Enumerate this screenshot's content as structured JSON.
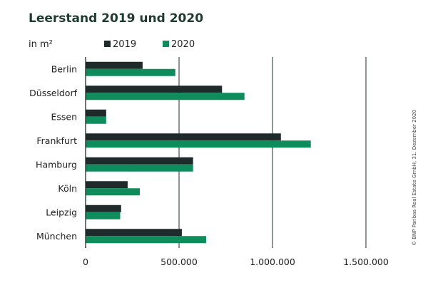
{
  "chart_data": {
    "type": "bar",
    "orientation": "horizontal",
    "title": "Leerstand 2019 und 2020",
    "unit_label": "in m²",
    "categories": [
      "Berlin",
      "Düsseldorf",
      "Essen",
      "Frankfurt",
      "Hamburg",
      "Köln",
      "Leipzig",
      "München"
    ],
    "series": [
      {
        "name": "2019",
        "color": "#1e2b2a",
        "values": [
          305000,
          730000,
          110000,
          1045000,
          575000,
          225000,
          190000,
          515000
        ]
      },
      {
        "name": "2020",
        "color": "#0f8c5c",
        "values": [
          480000,
          850000,
          110000,
          1205000,
          575000,
          290000,
          185000,
          645000
        ]
      }
    ],
    "xlim": [
      0,
      1500000
    ],
    "x_ticks": [
      0,
      500000,
      1000000,
      1500000
    ],
    "x_tick_labels": [
      "0",
      "500.000",
      "1.000.000",
      "1.500.000"
    ],
    "grid": true,
    "legend_position": "top"
  },
  "copyright": "© BNP Paribas Real Estate GmbH, 31. Dezember 2020"
}
